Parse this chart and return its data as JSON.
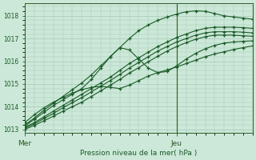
{
  "bg_color": "#cce8d8",
  "grid_color": "#aacebb",
  "line_color": "#1a5c28",
  "axis_color": "#2a5a2a",
  "text_color": "#1a5c28",
  "xlabel": "Pression niveau de la mer( hPa )",
  "xtick_labels": [
    "Mer",
    "Jeu"
  ],
  "xtick_positions": [
    0,
    48
  ],
  "ytick_min": 1013,
  "ytick_max": 1018,
  "ytick_step": 1,
  "vline_x": 48,
  "total_hours": 72,
  "figwidth": 3.2,
  "figheight": 2.0,
  "dpi": 100,
  "series": [
    {
      "x": [
        0,
        3,
        6,
        9,
        12,
        15,
        18,
        21,
        24,
        27,
        30,
        33,
        36,
        39,
        42,
        45,
        48,
        51,
        54,
        57,
        60,
        63,
        66,
        69,
        72
      ],
      "y": [
        1013.1,
        1013.3,
        1013.55,
        1013.8,
        1014.05,
        1014.3,
        1014.55,
        1014.8,
        1015.05,
        1015.3,
        1015.6,
        1015.9,
        1016.15,
        1016.4,
        1016.65,
        1016.85,
        1017.05,
        1017.2,
        1017.35,
        1017.45,
        1017.5,
        1017.5,
        1017.5,
        1017.48,
        1017.45
      ]
    },
    {
      "x": [
        0,
        3,
        6,
        9,
        12,
        15,
        18,
        21,
        24,
        27,
        30,
        33,
        36,
        39,
        42,
        45,
        48,
        51,
        54,
        57,
        60,
        63,
        66,
        69,
        72
      ],
      "y": [
        1013.05,
        1013.25,
        1013.48,
        1013.7,
        1013.95,
        1014.18,
        1014.4,
        1014.65,
        1014.9,
        1015.15,
        1015.42,
        1015.7,
        1015.95,
        1016.2,
        1016.45,
        1016.65,
        1016.85,
        1017.0,
        1017.15,
        1017.25,
        1017.3,
        1017.3,
        1017.3,
        1017.28,
        1017.25
      ]
    },
    {
      "x": [
        0,
        3,
        6,
        9,
        12,
        15,
        18,
        21,
        24,
        27,
        30,
        33,
        36,
        39,
        42,
        45,
        48,
        51,
        54,
        57,
        60,
        63,
        66,
        69,
        72
      ],
      "y": [
        1013.0,
        1013.18,
        1013.38,
        1013.58,
        1013.8,
        1014.0,
        1014.2,
        1014.45,
        1014.7,
        1014.95,
        1015.2,
        1015.48,
        1015.72,
        1015.98,
        1016.22,
        1016.45,
        1016.65,
        1016.82,
        1016.97,
        1017.08,
        1017.15,
        1017.15,
        1017.15,
        1017.12,
        1017.1
      ]
    },
    {
      "x": [
        0,
        3,
        6,
        9,
        12,
        15,
        18,
        21,
        24,
        27,
        30,
        33,
        36,
        39,
        42,
        45,
        48,
        51,
        54,
        57,
        60,
        63,
        66,
        69,
        72
      ],
      "y": [
        1013.15,
        1013.45,
        1013.75,
        1014.05,
        1014.3,
        1014.55,
        1014.8,
        1015.2,
        1015.7,
        1016.2,
        1016.6,
        1016.5,
        1016.1,
        1015.7,
        1015.5,
        1015.55,
        1015.8,
        1016.1,
        1016.35,
        1016.55,
        1016.7,
        1016.8,
        1016.85,
        1016.88,
        1016.9
      ]
    },
    {
      "x": [
        0,
        3,
        6,
        9,
        12,
        15,
        18,
        21,
        24,
        27,
        30,
        33,
        36,
        39,
        42,
        45,
        48,
        51,
        54,
        57,
        60,
        63,
        66,
        69,
        72
      ],
      "y": [
        1013.3,
        1013.65,
        1013.95,
        1014.2,
        1014.4,
        1014.6,
        1014.75,
        1014.85,
        1014.9,
        1014.85,
        1014.8,
        1014.95,
        1015.15,
        1015.35,
        1015.5,
        1015.62,
        1015.75,
        1015.9,
        1016.05,
        1016.2,
        1016.32,
        1016.42,
        1016.52,
        1016.6,
        1016.68
      ]
    },
    {
      "x": [
        0,
        3,
        6,
        9,
        12,
        15,
        18,
        21,
        24,
        27,
        30,
        33,
        36,
        39,
        42,
        45,
        48,
        51,
        54,
        57,
        60,
        63,
        66,
        69,
        72
      ],
      "y": [
        1013.2,
        1013.5,
        1013.85,
        1014.15,
        1014.45,
        1014.75,
        1015.05,
        1015.4,
        1015.8,
        1016.2,
        1016.6,
        1017.0,
        1017.35,
        1017.6,
        1017.8,
        1017.95,
        1018.08,
        1018.18,
        1018.22,
        1018.2,
        1018.1,
        1018.0,
        1017.95,
        1017.9,
        1017.85
      ]
    }
  ]
}
